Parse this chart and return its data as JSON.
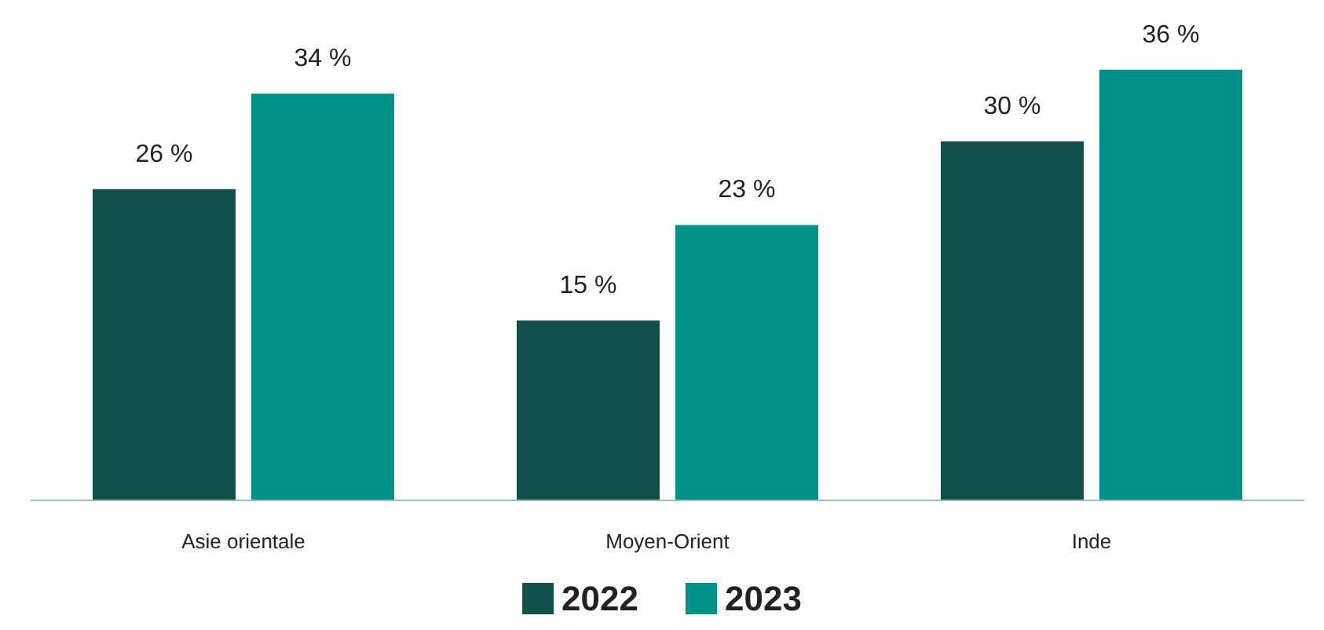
{
  "chart_data": {
    "type": "bar",
    "categories": [
      "Asie orientale",
      "Moyen-Orient",
      "Inde"
    ],
    "series": [
      {
        "name": "2022",
        "color": "#114f4b",
        "values": [
          26,
          15,
          30
        ],
        "value_labels": [
          "26 %",
          "15 %",
          "30 %"
        ]
      },
      {
        "name": "2023",
        "color": "#00918a",
        "values": [
          34,
          23,
          36
        ],
        "value_labels": [
          "34 %",
          "23 %",
          "36 %"
        ]
      }
    ],
    "legend": "bottom"
  }
}
